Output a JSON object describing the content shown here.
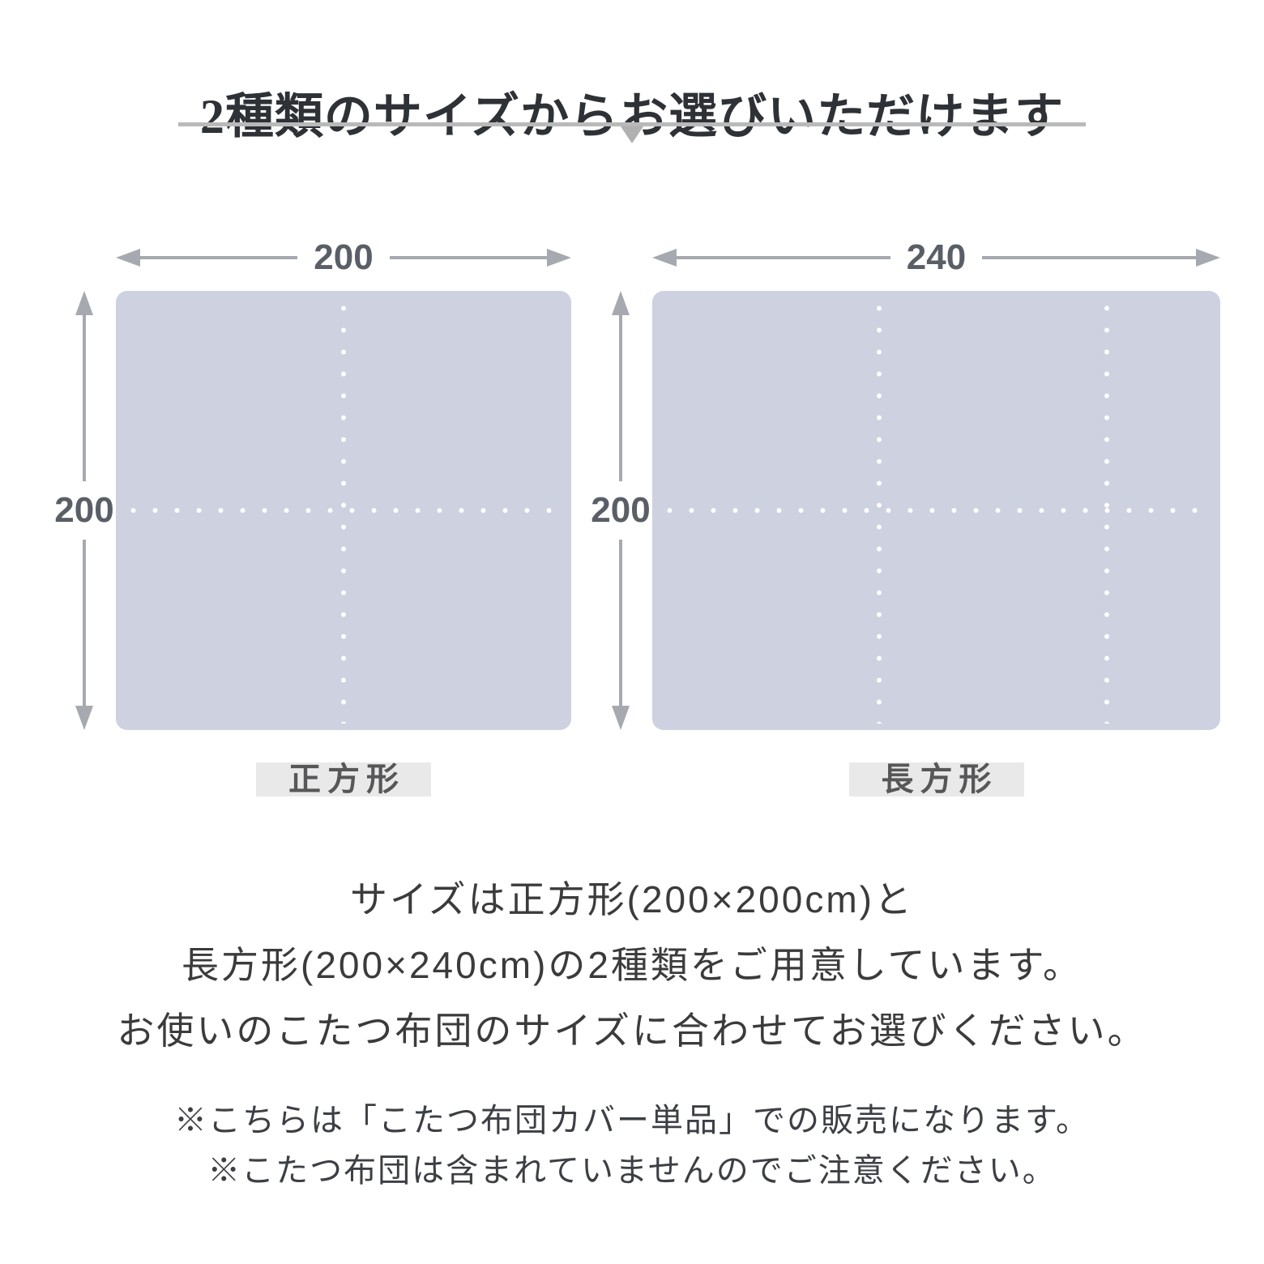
{
  "header": {
    "title": "2種類のサイズからお選びいただけます"
  },
  "diagrams": [
    {
      "shape_label": "正方形",
      "width_value": "200",
      "height_value": "200",
      "size_cm": "200×200cm"
    },
    {
      "shape_label": "長方形",
      "width_value": "240",
      "height_value": "200",
      "size_cm": "200×240cm"
    }
  ],
  "description": {
    "lines": [
      "サイズは正方形(200×200cm)と",
      "長方形(200×240cm)の2種類をご用意しています。",
      "お使いのこたつ布団のサイズに合わせてお選びください。"
    ]
  },
  "notes": {
    "lines": [
      "※こちらは「こたつ布団カバー単品」での販売になります。",
      "※こたつ布団は含まれていませんのでご注意ください。"
    ]
  },
  "colors": {
    "panel_fill": "#cdd1e0",
    "dimension_arrow": "#a6a9af",
    "dimension_text": "#5a5f67",
    "label_background": "#e9e9e9",
    "label_text": "#57575a",
    "title_text": "#2e3136",
    "rule_gray": "#b9b9b9"
  }
}
